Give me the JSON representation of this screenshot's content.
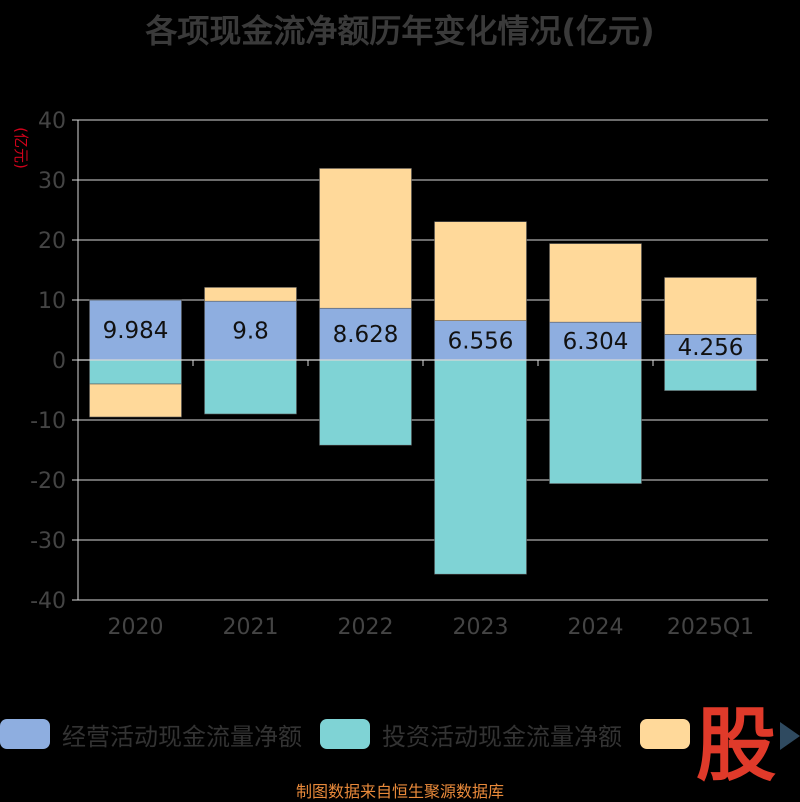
{
  "title": "各项现金流净额历年变化情况(亿元)",
  "source_note": "制图数据来自恒生聚源数据库",
  "watermark": "股",
  "colors": {
    "operating": "#8eaee0",
    "investing": "#7fd3d5",
    "financing": "#ffd99a",
    "axis": "#d8d8d8",
    "ytitle": "#d0021b",
    "tick": "#444",
    "label": "#111"
  },
  "chart_data": {
    "type": "bar",
    "stacked": true,
    "categories": [
      "2020",
      "2021",
      "2022",
      "2023",
      "2024",
      "2025Q1"
    ],
    "ylabel": "(亿元)",
    "ylim": [
      -40,
      40
    ],
    "yticks": [
      40,
      30,
      20,
      10,
      0,
      -10,
      -20,
      -30,
      -40
    ],
    "grid": true,
    "legend_position": "bottom",
    "series": [
      {
        "name": "经营活动现金流量净额",
        "color_key": "operating",
        "values": [
          9.984,
          9.8,
          8.628,
          6.556,
          6.304,
          4.256
        ],
        "show_labels": true
      },
      {
        "name": "投资活动现金流量净额",
        "color_key": "investing",
        "values": [
          -4.0,
          -9.0,
          -14.2,
          -35.7,
          -20.6,
          -5.1
        ],
        "show_labels": false
      },
      {
        "name": "",
        "color_key": "financing",
        "values": [
          -5.5,
          2.3,
          23.3,
          16.5,
          13.1,
          9.5
        ],
        "show_labels": false
      }
    ]
  }
}
